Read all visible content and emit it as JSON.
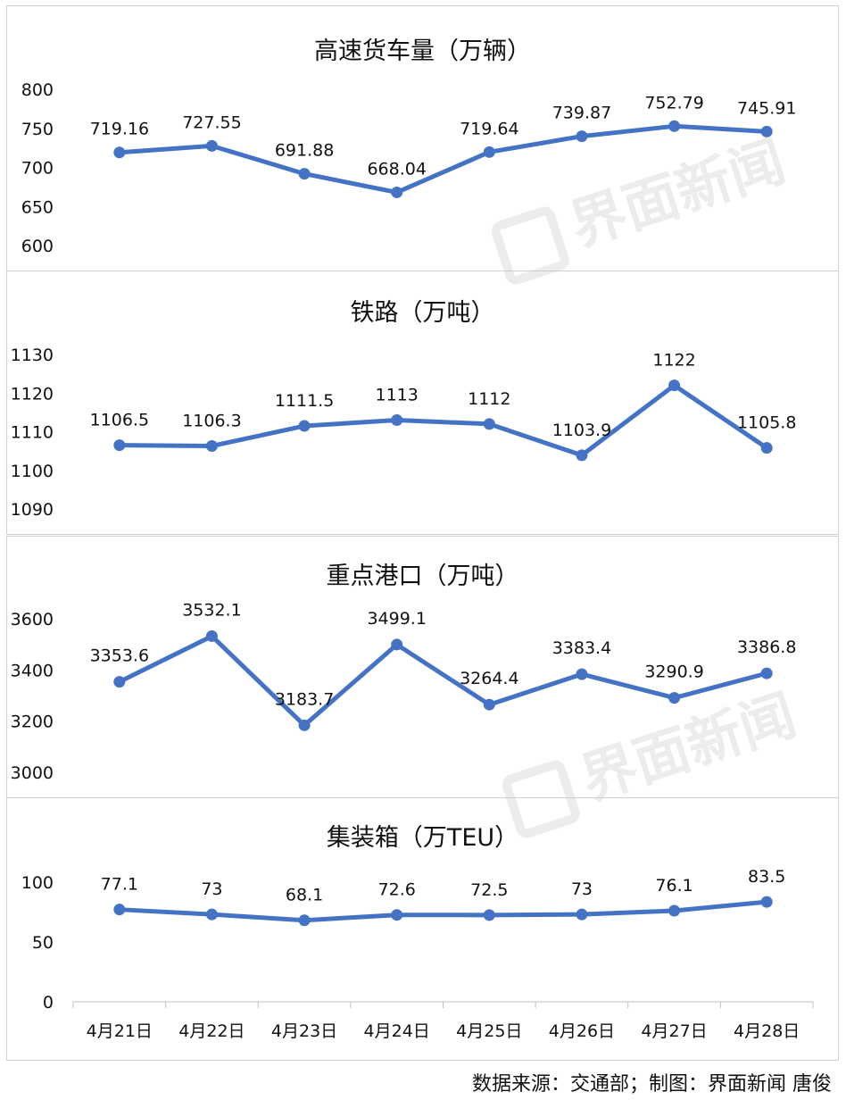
{
  "chart_data": [
    {
      "type": "line",
      "title": "高速货车量（万辆）",
      "ylim": [
        600,
        800
      ],
      "yticks": [
        "800",
        "750",
        "700",
        "650",
        "600"
      ],
      "categories": [
        "4月21日",
        "4月22日",
        "4月23日",
        "4月24日",
        "4月25日",
        "4月26日",
        "4月27日",
        "4月28日"
      ],
      "values": [
        719.16,
        727.55,
        691.88,
        668.04,
        719.64,
        739.87,
        752.79,
        745.91
      ],
      "labels": [
        "719.16",
        "727.55",
        "691.88",
        "668.04",
        "719.64",
        "739.87",
        "752.79",
        "745.91"
      ],
      "color": "#4472c4"
    },
    {
      "type": "line",
      "title": "铁路（万吨）",
      "ylim": [
        1090,
        1130
      ],
      "yticks": [
        "1130",
        "1120",
        "1110",
        "1100",
        "1090"
      ],
      "categories": [
        "4月21日",
        "4月22日",
        "4月23日",
        "4月24日",
        "4月25日",
        "4月26日",
        "4月27日",
        "4月28日"
      ],
      "values": [
        1106.5,
        1106.3,
        1111.5,
        1113,
        1112,
        1103.9,
        1122,
        1105.8
      ],
      "labels": [
        "1106.5",
        "1106.3",
        "1111.5",
        "1113",
        "1112",
        "1103.9",
        "1122",
        "1105.8"
      ],
      "color": "#4472c4"
    },
    {
      "type": "line",
      "title": "重点港口（万吨）",
      "ylim": [
        3000,
        3600
      ],
      "yticks": [
        "3600",
        "3400",
        "3200",
        "3000"
      ],
      "categories": [
        "4月21日",
        "4月22日",
        "4月23日",
        "4月24日",
        "4月25日",
        "4月26日",
        "4月27日",
        "4月28日"
      ],
      "values": [
        3353.6,
        3532.1,
        3183.7,
        3499.1,
        3264.4,
        3383.4,
        3290.9,
        3386.8
      ],
      "labels": [
        "3353.6",
        "3532.1",
        "3183.7",
        "3499.1",
        "3264.4",
        "3383.4",
        "3290.9",
        "3386.8"
      ],
      "color": "#4472c4"
    },
    {
      "type": "line",
      "title": "集装箱（万TEU）",
      "ylim": [
        0,
        100
      ],
      "yticks": [
        "100",
        "50",
        "0"
      ],
      "categories": [
        "4月21日",
        "4月22日",
        "4月23日",
        "4月24日",
        "4月25日",
        "4月26日",
        "4月27日",
        "4月28日"
      ],
      "values": [
        77.1,
        73,
        68.1,
        72.6,
        72.5,
        73,
        76.1,
        83.5
      ],
      "labels": [
        "77.1",
        "73",
        "68.1",
        "72.6",
        "72.5",
        "73",
        "76.1",
        "83.5"
      ],
      "color": "#4472c4"
    }
  ],
  "watermark": "界面新闻",
  "source": "数据来源：交通部；制图：界面新闻 唐俊"
}
